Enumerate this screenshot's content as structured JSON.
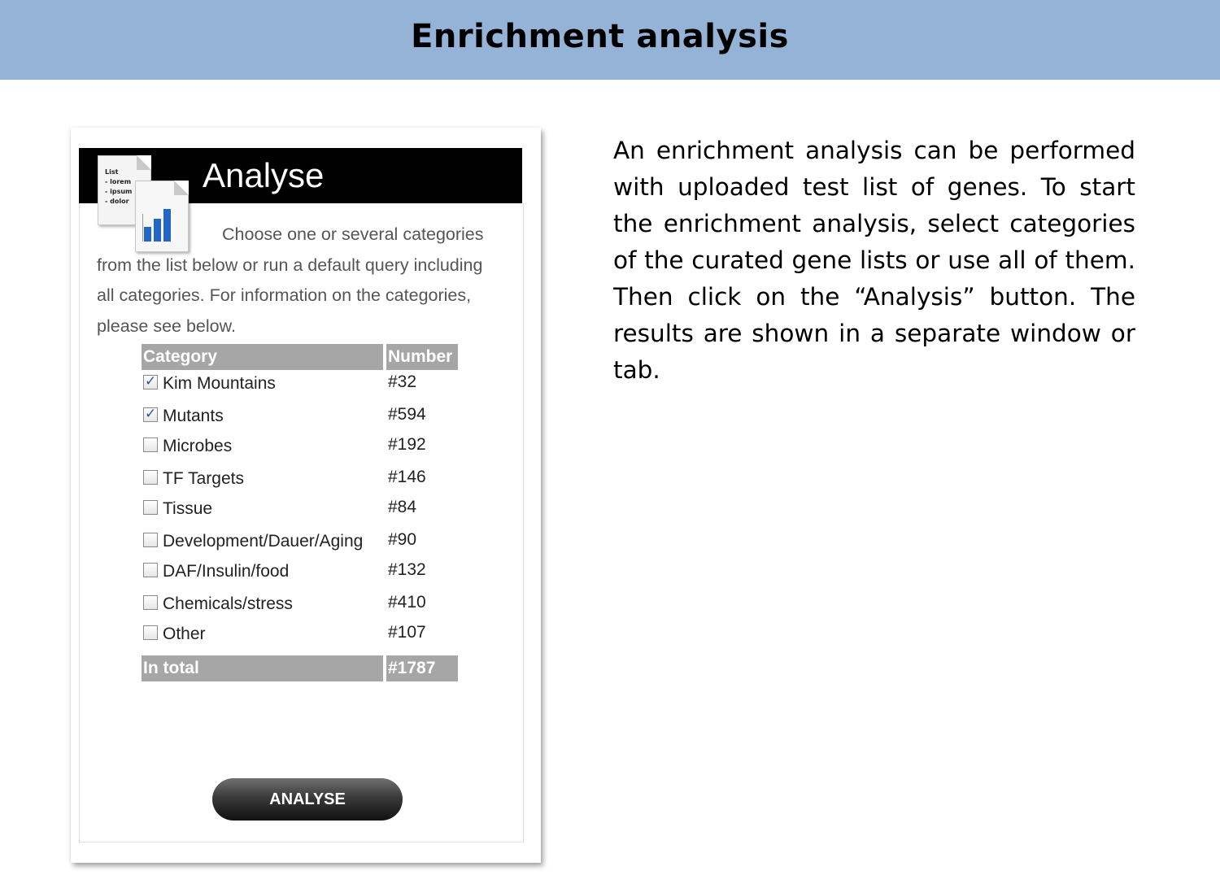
{
  "slide": {
    "title": "Enrichment analysis"
  },
  "panel": {
    "header_title": "Analyse",
    "list_icon_lines": [
      "List",
      "- lorem",
      "- ipsum",
      "- dolor"
    ],
    "intro_first_line": "Choose one or several",
    "intro_rest": "categories from the list below or run a default query including all categories. For information on the categories, please see below.",
    "table": {
      "header_category": "Category",
      "header_number": "Number",
      "rows": [
        {
          "label": "Kim Mountains",
          "number": "#32",
          "checked": true
        },
        {
          "label": "Mutants",
          "number": "#594",
          "checked": true
        },
        {
          "label": "Microbes",
          "number": "#192",
          "checked": false
        },
        {
          "label": "TF Targets",
          "number": "#146",
          "checked": false
        },
        {
          "label": "Tissue",
          "number": "#84",
          "checked": false
        },
        {
          "label": "Development/Dauer/Aging",
          "number": "#90",
          "checked": false
        },
        {
          "label": "DAF/Insulin/food",
          "number": "#132",
          "checked": false
        },
        {
          "label": "Chemicals/stress",
          "number": "#410",
          "checked": false
        },
        {
          "label": "Other",
          "number": "#107",
          "checked": false
        }
      ],
      "total_label": "In total",
      "total_number": "#1787"
    },
    "button_label": "ANALYSE"
  },
  "description": "An enrichment analysis can be performed with uploaded test list of genes. To start the enrichment analysis, select categories of the curated gene lists or use all of them. Then click on the “Analysis” button. The results are shown in a separate window or tab.",
  "colors": {
    "banner": "#95b3d7",
    "header": "#000000",
    "table_header": "#a6a6a6",
    "chart_icon_bars": "#2466c6"
  },
  "icons": [
    "list-document-icon",
    "chart-document-icon",
    "checkbox-icon"
  ]
}
